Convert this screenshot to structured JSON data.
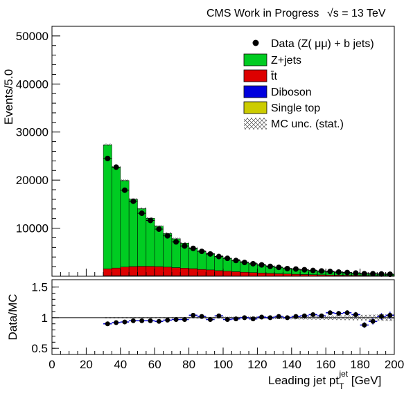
{
  "header": {
    "experiment": "CMS Work in Progress",
    "energy": "√s = 13 TeV"
  },
  "legend": {
    "data": "Data (Z( μμ) + b jets)",
    "zjets": "Z+jets",
    "ttbar": "t̄t",
    "diboson": "Diboson",
    "singletop": "Single top",
    "mcunc": "MC unc. (stat.)"
  },
  "colors": {
    "zjets": "#00cc22",
    "ttbar": "#dd0000",
    "diboson": "#0000dd",
    "singletop": "#cccc00",
    "data": "#000000",
    "ratio_marker": "#0000cc"
  },
  "chart_data": [
    {
      "type": "bar",
      "ylabel": "Events/5.0",
      "xlim": [
        0,
        200
      ],
      "ylim": [
        0,
        52000
      ],
      "yticks": [
        10000,
        20000,
        30000,
        40000,
        50000
      ],
      "bin_edges": [
        30,
        35,
        40,
        45,
        50,
        55,
        60,
        65,
        70,
        75,
        80,
        85,
        90,
        95,
        100,
        105,
        110,
        115,
        120,
        125,
        130,
        135,
        140,
        145,
        150,
        155,
        160,
        165,
        170,
        175,
        180,
        185,
        190,
        195,
        200
      ],
      "series": [
        {
          "name": "Z+jets",
          "values": [
            25800,
            21000,
            18000,
            14000,
            12000,
            10000,
            8400,
            7000,
            6000,
            5200,
            4300,
            3800,
            3400,
            3000,
            2700,
            2400,
            2100,
            1900,
            1700,
            1500,
            1320,
            1180,
            1060,
            940,
            830,
            740,
            650,
            580,
            520,
            460,
            410,
            365,
            325,
            290
          ]
        },
        {
          "name": "t̄t",
          "values": [
            1450,
            1600,
            1800,
            1900,
            1950,
            1950,
            1900,
            1800,
            1700,
            1600,
            1500,
            1350,
            1250,
            1100,
            1000,
            900,
            800,
            720,
            640,
            570,
            500,
            450,
            400,
            350,
            310,
            280,
            250,
            220,
            190,
            170,
            150,
            130,
            115,
            100
          ]
        },
        {
          "name": "Diboson",
          "values": [
            70,
            80,
            85,
            90,
            90,
            85,
            80,
            75,
            70,
            65,
            60,
            55,
            50,
            45,
            40,
            36,
            32,
            28,
            25,
            22,
            20,
            18,
            16,
            14,
            12,
            11,
            10,
            9,
            8,
            7,
            6,
            5,
            5,
            4
          ]
        },
        {
          "name": "Single top",
          "values": [
            25,
            28,
            30,
            32,
            32,
            30,
            28,
            26,
            24,
            22,
            20,
            18,
            16,
            14,
            12,
            11,
            10,
            9,
            8,
            7,
            6,
            5,
            5,
            4,
            4,
            3,
            3,
            3,
            2,
            2,
            2,
            2,
            1,
            1
          ]
        },
        {
          "name": "Data (Z( μμ) + b jets)",
          "values": [
            24500,
            22700,
            17900,
            15600,
            13100,
            11600,
            9800,
            8400,
            7150,
            6300,
            5800,
            5170,
            4630,
            4100,
            3720,
            3270,
            2870,
            2600,
            2360,
            2050,
            1840,
            1590,
            1500,
            1350,
            1200,
            1100,
            990,
            870,
            780,
            660,
            530,
            530,
            470,
            420
          ]
        }
      ]
    },
    {
      "type": "scatter",
      "ylabel": "Data/MC",
      "xlabel": "Leading jet pt",
      "xlabel_super": "jet",
      "xlabel_sub": "T",
      "xlabel_unit": " [GeV]",
      "xlim": [
        0,
        200
      ],
      "ylim": [
        0.4,
        1.62
      ],
      "yticks": [
        0.5,
        1,
        1.5
      ],
      "xticks": [
        0,
        20,
        40,
        60,
        80,
        100,
        120,
        140,
        160,
        180,
        200
      ],
      "reference": 1,
      "x": [
        32.5,
        37.5,
        42.5,
        47.5,
        52.5,
        57.5,
        62.5,
        67.5,
        72.5,
        77.5,
        82.5,
        87.5,
        92.5,
        97.5,
        102.5,
        107.5,
        112.5,
        117.5,
        122.5,
        127.5,
        132.5,
        137.5,
        142.5,
        147.5,
        152.5,
        157.5,
        162.5,
        167.5,
        172.5,
        177.5,
        182.5,
        187.5,
        192.5,
        197.5
      ],
      "y": [
        0.9,
        0.92,
        0.93,
        0.95,
        0.95,
        0.95,
        0.94,
        0.96,
        0.97,
        0.97,
        1.04,
        1.02,
        0.97,
        1.03,
        0.97,
        0.98,
        1.0,
        0.98,
        1.01,
        1.0,
        1.02,
        1.0,
        1.02,
        1.03,
        1.05,
        1.03,
        1.08,
        1.07,
        1.08,
        1.05,
        0.88,
        0.94,
        1.02,
        1.04
      ],
      "uncertainty": [
        0.01,
        0.01,
        0.01,
        0.01,
        0.01,
        0.01,
        0.01,
        0.01,
        0.012,
        0.012,
        0.014,
        0.014,
        0.015,
        0.016,
        0.017,
        0.018,
        0.019,
        0.02,
        0.021,
        0.022,
        0.024,
        0.026,
        0.028,
        0.03,
        0.032,
        0.034,
        0.036,
        0.038,
        0.04,
        0.043,
        0.046,
        0.05,
        0.053,
        0.057
      ]
    }
  ]
}
